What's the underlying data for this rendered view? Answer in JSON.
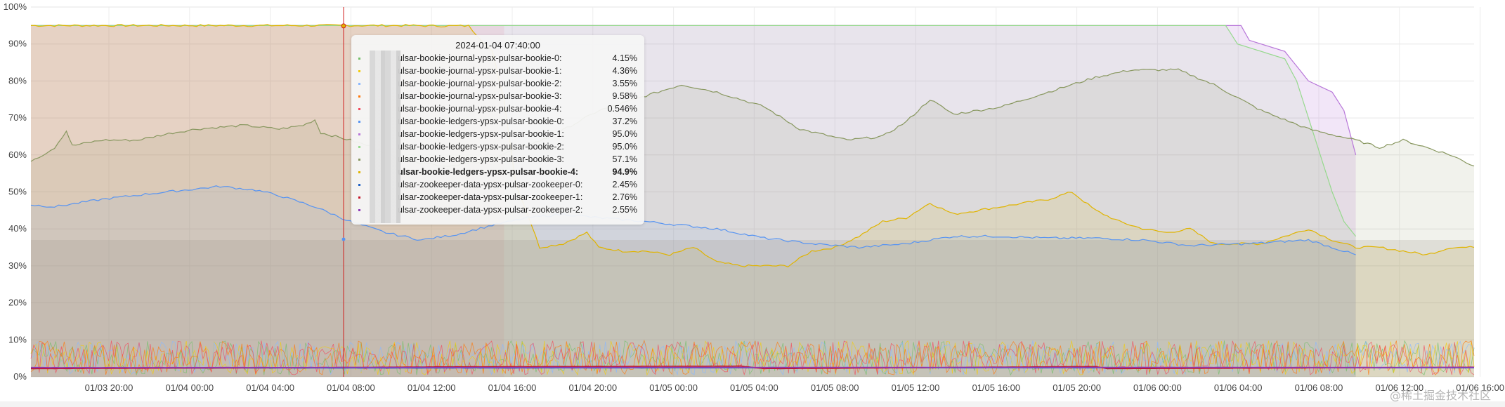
{
  "chart_data": {
    "type": "area",
    "y_axis": {
      "min": 0,
      "max": 100,
      "unit": "%",
      "ticks": [
        "0%",
        "10%",
        "20%",
        "30%",
        "40%",
        "50%",
        "60%",
        "70%",
        "80%",
        "90%",
        "100%"
      ]
    },
    "x_axis": {
      "ticks": [
        "01/03 20:00",
        "01/04 00:00",
        "01/04 04:00",
        "01/04 08:00",
        "01/04 12:00",
        "01/04 16:00",
        "01/04 20:00",
        "01/05 00:00",
        "01/05 04:00",
        "01/05 08:00",
        "01/05 12:00",
        "01/05 16:00",
        "01/05 20:00",
        "01/06 00:00",
        "01/06 04:00",
        "01/06 08:00",
        "01/06 12:00",
        "01/06 16:00"
      ]
    },
    "grid": true,
    "hover": {
      "time": "2024-01-04 07:40:00"
    },
    "series": [
      {
        "name": "pulsar-bookie-journal-ypsx-pulsar-bookie-0",
        "color": "#73bf69",
        "noise": true,
        "value": 4.15
      },
      {
        "name": "pulsar-bookie-journal-ypsx-pulsar-bookie-1",
        "color": "#f2cc0c",
        "noise": true,
        "value": 4.36
      },
      {
        "name": "pulsar-bookie-journal-ypsx-pulsar-bookie-2",
        "color": "#8ab8ff",
        "noise": true,
        "value": 3.55
      },
      {
        "name": "pulsar-bookie-journal-ypsx-pulsar-bookie-3",
        "color": "#ff780a",
        "noise": true,
        "value": 9.58
      },
      {
        "name": "pulsar-bookie-journal-ypsx-pulsar-bookie-4",
        "color": "#f2495c",
        "noise": true,
        "value": 0.546
      },
      {
        "name": "pulsar-bookie-ledgers-ypsx-pulsar-bookie-0",
        "color": "#5794f2",
        "value": 37.2,
        "points": [
          [
            0,
            46.5
          ],
          [
            2,
            46
          ],
          [
            6,
            48
          ],
          [
            10,
            49.5
          ],
          [
            13,
            50.5
          ],
          [
            16,
            51.5
          ],
          [
            19,
            50.5
          ],
          [
            21,
            49
          ],
          [
            24,
            46
          ],
          [
            27,
            42
          ],
          [
            30,
            39
          ],
          [
            33,
            37
          ],
          [
            36,
            38.5
          ],
          [
            39,
            41
          ],
          [
            42,
            43
          ],
          [
            45,
            44
          ],
          [
            48,
            43
          ],
          [
            52,
            42
          ],
          [
            55,
            41
          ],
          [
            58,
            40
          ],
          [
            62,
            37.5
          ],
          [
            66,
            36
          ],
          [
            70,
            35
          ],
          [
            74,
            36
          ],
          [
            78,
            38
          ],
          [
            82,
            38
          ],
          [
            86,
            37.5
          ],
          [
            90,
            37.5
          ],
          [
            94,
            37
          ],
          [
            98,
            35.5
          ],
          [
            103,
            36
          ],
          [
            108,
            37
          ],
          [
            112,
            33
          ]
        ]
      },
      {
        "name": "pulsar-bookie-ledgers-ypsx-pulsar-bookie-1",
        "color": "#b877d9",
        "value": 95.0,
        "points": [
          [
            0,
            95
          ],
          [
            20,
            95
          ],
          [
            40,
            95
          ],
          [
            60,
            95
          ],
          [
            80,
            95
          ],
          [
            100,
            95
          ],
          [
            102.3,
            95
          ],
          [
            103,
            91
          ],
          [
            106,
            88
          ],
          [
            108,
            80
          ],
          [
            110,
            77
          ],
          [
            111,
            72
          ],
          [
            112,
            60
          ]
        ]
      },
      {
        "name": "pulsar-bookie-ledgers-ypsx-pulsar-bookie-2",
        "color": "#96d98d",
        "value": 95.0,
        "points": [
          [
            0,
            95
          ],
          [
            20,
            95
          ],
          [
            33.5,
            95
          ],
          [
            37,
            95
          ],
          [
            40,
            95
          ],
          [
            60,
            95
          ],
          [
            80,
            95
          ],
          [
            100,
            95
          ],
          [
            101,
            95
          ],
          [
            102,
            90
          ],
          [
            104,
            88
          ],
          [
            106,
            86
          ],
          [
            107,
            80
          ],
          [
            108,
            70
          ],
          [
            109,
            60
          ],
          [
            110,
            50
          ],
          [
            111,
            42
          ],
          [
            112,
            38
          ]
        ]
      },
      {
        "name": "pulsar-bookie-ledgers-ypsx-pulsar-bookie-3",
        "color": "#88975f",
        "value": 57.1,
        "points": [
          [
            0,
            58.5
          ],
          [
            1,
            60
          ],
          [
            2,
            62
          ],
          [
            3,
            66.5
          ],
          [
            3.5,
            62.5
          ],
          [
            6,
            64
          ],
          [
            9,
            64
          ],
          [
            12,
            66
          ],
          [
            14,
            67
          ],
          [
            18,
            68
          ],
          [
            21,
            67
          ],
          [
            23,
            68
          ],
          [
            24,
            69.5
          ],
          [
            24.5,
            66
          ],
          [
            27,
            64
          ],
          [
            29,
            62
          ],
          [
            31,
            59
          ],
          [
            33,
            58
          ],
          [
            35,
            57
          ],
          [
            38,
            58
          ],
          [
            44,
            65
          ],
          [
            48,
            72
          ],
          [
            52,
            76
          ],
          [
            55,
            79
          ],
          [
            58,
            77
          ],
          [
            62,
            73
          ],
          [
            65,
            67
          ],
          [
            69,
            64
          ],
          [
            72,
            65
          ],
          [
            74,
            69
          ],
          [
            76,
            75
          ],
          [
            78,
            71
          ],
          [
            82,
            73
          ],
          [
            86,
            77
          ],
          [
            90,
            81
          ],
          [
            93,
            83
          ],
          [
            97,
            83
          ],
          [
            100,
            79
          ],
          [
            104,
            72
          ],
          [
            108,
            67
          ],
          [
            112,
            64
          ],
          [
            114,
            62
          ],
          [
            116,
            64
          ],
          [
            120,
            60
          ],
          [
            122,
            57
          ]
        ]
      },
      {
        "name": "pulsar-bookie-ledgers-ypsx-pulsar-bookie-4",
        "color": "#e0b400",
        "value": 94.9,
        "points": [
          [
            0,
            95
          ],
          [
            12,
            95
          ],
          [
            24,
            95
          ],
          [
            32,
            95
          ],
          [
            34,
            94.9
          ],
          [
            37,
            94.9
          ],
          [
            39,
            88
          ],
          [
            40,
            75
          ],
          [
            41,
            52
          ],
          [
            42,
            44
          ],
          [
            43,
            35
          ],
          [
            45,
            36
          ],
          [
            47,
            39
          ],
          [
            48,
            35
          ],
          [
            50,
            34
          ],
          [
            52,
            34
          ],
          [
            54,
            33
          ],
          [
            56,
            35
          ],
          [
            58,
            31
          ],
          [
            60,
            30
          ],
          [
            62,
            30
          ],
          [
            64,
            30
          ],
          [
            66,
            34
          ],
          [
            68,
            35
          ],
          [
            70,
            38
          ],
          [
            72,
            42
          ],
          [
            74,
            43
          ],
          [
            76,
            47
          ],
          [
            78,
            44
          ],
          [
            80,
            45
          ],
          [
            82,
            46
          ],
          [
            84,
            47
          ],
          [
            86,
            48
          ],
          [
            88,
            50
          ],
          [
            90,
            45
          ],
          [
            92,
            42
          ],
          [
            94,
            40
          ],
          [
            96,
            39
          ],
          [
            98,
            40
          ],
          [
            100,
            36
          ],
          [
            104,
            36
          ],
          [
            106,
            38
          ],
          [
            108,
            40
          ],
          [
            110,
            37
          ],
          [
            112,
            35
          ],
          [
            114,
            35
          ],
          [
            116,
            34
          ],
          [
            118,
            33
          ],
          [
            120,
            35
          ],
          [
            122,
            35
          ]
        ]
      },
      {
        "name": "pulsar-zookeeper-data-ypsx-pulsar-zookeeper-0",
        "color": "#1f60c4",
        "value": 2.45,
        "points": [
          [
            0,
            2.4
          ],
          [
            30,
            2.4
          ],
          [
            60,
            2.45
          ],
          [
            90,
            2.45
          ],
          [
            122,
            2.45
          ]
        ]
      },
      {
        "name": "pulsar-zookeeper-data-ypsx-pulsar-zookeeper-1",
        "color": "#c4162a",
        "value": 2.76,
        "points": [
          [
            0,
            2.2
          ],
          [
            30,
            2.6
          ],
          [
            34,
            2.7
          ],
          [
            60,
            2.9
          ],
          [
            62,
            2.2
          ],
          [
            90,
            2.8
          ],
          [
            91,
            2.2
          ],
          [
            122,
            2.6
          ]
        ]
      },
      {
        "name": "pulsar-zookeeper-data-ypsx-pulsar-zookeeper-2",
        "color": "#8f3bb8",
        "value": 2.55,
        "points": [
          [
            0,
            2.5
          ],
          [
            60,
            2.55
          ],
          [
            122,
            2.55
          ]
        ]
      }
    ]
  },
  "tooltip": {
    "title": "2024-01-04 07:40:00",
    "rows": [
      {
        "label": "ulsar-bookie-journal-ypsx-pulsar-bookie-0:",
        "value": "4.15%",
        "color": "#73bf69"
      },
      {
        "label": "ulsar-bookie-journal-ypsx-pulsar-bookie-1:",
        "value": "4.36%",
        "color": "#f2cc0c"
      },
      {
        "label": "ulsar-bookie-journal-ypsx-pulsar-bookie-2:",
        "value": "3.55%",
        "color": "#8ab8ff"
      },
      {
        "label": "ulsar-bookie-journal-ypsx-pulsar-bookie-3:",
        "value": "9.58%",
        "color": "#ff780a"
      },
      {
        "label": "ulsar-bookie-journal-ypsx-pulsar-bookie-4:",
        "value": "0.546%",
        "color": "#f2495c"
      },
      {
        "label": "ulsar-bookie-ledgers-ypsx-pulsar-bookie-0:",
        "value": "37.2%",
        "color": "#5794f2"
      },
      {
        "label": "ulsar-bookie-ledgers-ypsx-pulsar-bookie-1:",
        "value": "95.0%",
        "color": "#b877d9"
      },
      {
        "label": "ulsar-bookie-ledgers-ypsx-pulsar-bookie-2:",
        "value": "95.0%",
        "color": "#96d98d"
      },
      {
        "label": "ulsar-bookie-ledgers-ypsx-pulsar-bookie-3:",
        "value": "57.1%",
        "color": "#88975f"
      },
      {
        "label": "ulsar-bookie-ledgers-ypsx-pulsar-bookie-4:",
        "value": "94.9%",
        "color": "#e0b400",
        "bold": true
      },
      {
        "label": "ulsar-zookeeper-data-ypsx-pulsar-zookeeper-0:",
        "value": "2.45%",
        "color": "#1f60c4"
      },
      {
        "label": "ulsar-zookeeper-data-ypsx-pulsar-zookeeper-1:",
        "value": "2.76%",
        "color": "#c4162a"
      },
      {
        "label": "ulsar-zookeeper-data-ypsx-pulsar-zookeeper-2:",
        "value": "2.55%",
        "color": "#8f3bb8"
      }
    ]
  },
  "watermark": "@稀土掘金技术社区"
}
